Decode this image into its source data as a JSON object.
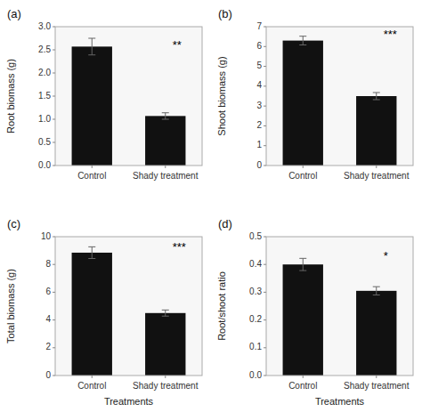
{
  "chart_data": [
    {
      "type": "bar",
      "title": "(a)",
      "ylabel": "Root biomass (g)",
      "categories": [
        "Control",
        "Shady treatment"
      ],
      "values": [
        2.57,
        1.07
      ],
      "errors": [
        0.18,
        0.07
      ],
      "color": "#111111",
      "ylim": [
        0,
        3.0
      ],
      "yticks": [
        {
          "value": 0.0,
          "label": "0.0"
        },
        0.5,
        {
          "value": 1.0,
          "label": "1.0"
        },
        1.5,
        {
          "value": 2.0,
          "label": "2.0"
        },
        2.5,
        {
          "value": 3.0,
          "label": "3.0"
        }
      ],
      "annotations": [
        {
          "text": "**",
          "y": 2.5
        }
      ],
      "grid": false
    },
    {
      "type": "bar",
      "title": "(b)",
      "ylabel": "Shoot biomass (g)",
      "categories": [
        "Control",
        "Shady treatment"
      ],
      "values": [
        6.3,
        3.5
      ],
      "errors": [
        0.22,
        0.18
      ],
      "color": "#111111",
      "ylim": [
        0,
        7
      ],
      "yticks": [
        0,
        1,
        2,
        3,
        4,
        5,
        6,
        7
      ],
      "annotations": [
        {
          "text": "***",
          "y": 6.35
        }
      ],
      "grid": false
    },
    {
      "type": "bar",
      "title": "(c)",
      "ylabel": "Total biomass (g)",
      "xlabel": "Treatments",
      "categories": [
        "Control",
        "Shady treatment"
      ],
      "values": [
        8.85,
        4.5
      ],
      "errors": [
        0.42,
        0.22
      ],
      "color": "#111111",
      "ylim": [
        0,
        10
      ],
      "yticks": [
        0,
        2,
        4,
        6,
        8,
        10
      ],
      "annotations": [
        {
          "text": "***",
          "y": 8.9
        }
      ],
      "grid": false
    },
    {
      "type": "bar",
      "title": "(d)",
      "ylabel": "Root/shoot ratio",
      "xlabel": "Treatments",
      "categories": [
        "Control",
        "Shady treatment"
      ],
      "values": [
        0.4,
        0.305
      ],
      "errors": [
        0.022,
        0.015
      ],
      "color": "#111111",
      "ylim": [
        0.0,
        0.5
      ],
      "yticks": [
        {
          "value": 0.0,
          "label": "0.0"
        },
        0.1,
        0.2,
        0.3,
        0.4,
        0.5
      ],
      "annotations": [
        {
          "text": "*",
          "y": 0.415
        }
      ],
      "grid": false
    }
  ]
}
